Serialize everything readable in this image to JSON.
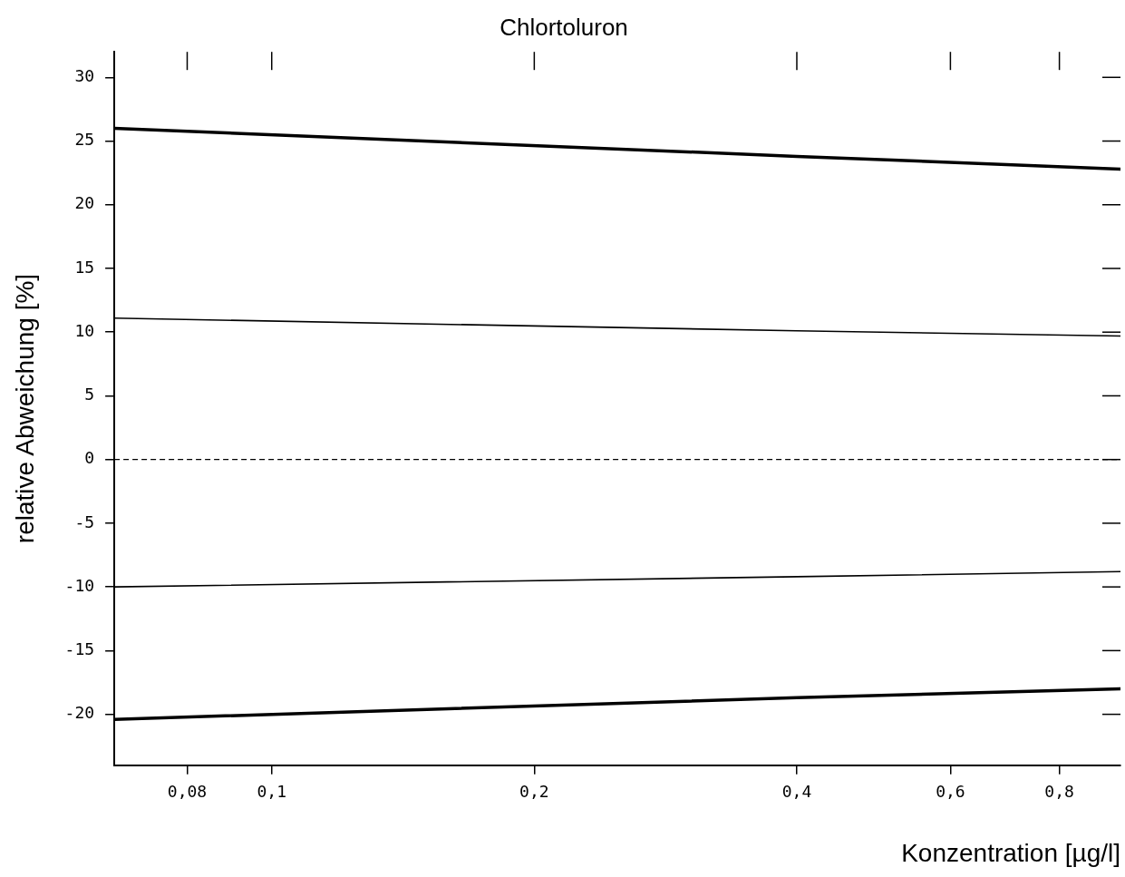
{
  "chart_data": {
    "type": "line",
    "title": "Chlortoluron",
    "xlabel": "Konzentration [µg/l]",
    "ylabel": "relative Abweichung [%]",
    "log": "x",
    "grid": false,
    "legend": false,
    "marker": "none",
    "series": [
      {
        "color": "#000000",
        "x": [
          0.066,
          0.4,
          0.94
        ],
        "values": [
          26.0,
          23.8,
          22.8
        ]
      },
      {
        "color": "#000000",
        "x": [
          0.066,
          0.4,
          0.94
        ],
        "values": [
          11.1,
          10.1,
          9.7
        ]
      },
      {
        "color": "#000000",
        "x": [
          0.066,
          0.4,
          0.94
        ],
        "values": [
          -10.0,
          -9.2,
          -8.8
        ]
      },
      {
        "color": "#000000",
        "x": [
          0.066,
          0.4,
          0.94
        ],
        "values": [
          -20.4,
          -18.7,
          -18.0
        ]
      }
    ],
    "xlim": [
      0.066,
      0.94
    ],
    "xticks": [
      {
        "value": 0.08,
        "label": "0,08"
      },
      {
        "value": 0.1,
        "label": "0,1"
      },
      {
        "value": 0.2,
        "label": "0,2"
      },
      {
        "value": 0.4,
        "label": "0,4"
      },
      {
        "value": 0.6,
        "label": "0,6"
      },
      {
        "value": 0.8,
        "label": "0,8"
      }
    ],
    "ylim": [
      -24,
      32
    ],
    "yticks": [
      -20,
      -15,
      -10,
      -5,
      0,
      5,
      10,
      15,
      20,
      25,
      30
    ],
    "ref_lines": [
      {
        "axis": "y",
        "value": 0,
        "color": "#000000",
        "line_style": "dashed"
      }
    ]
  }
}
